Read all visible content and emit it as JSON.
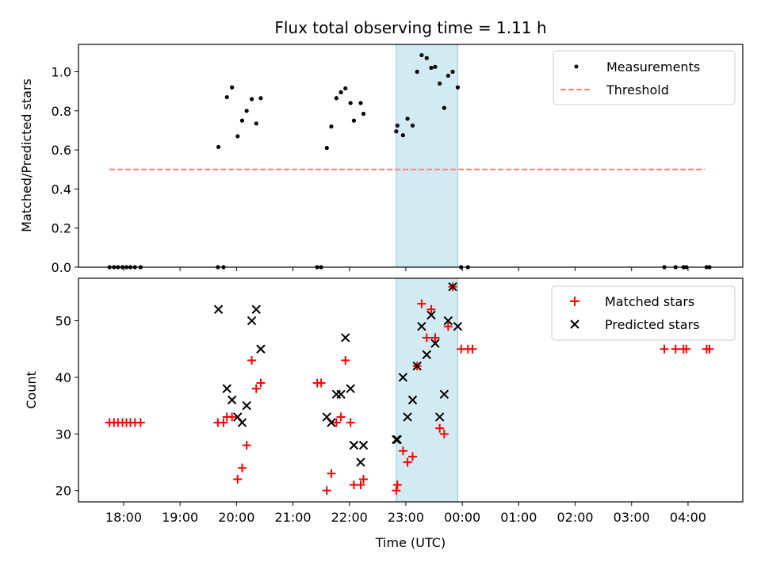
{
  "chart_data": [
    {
      "type": "scatter",
      "title": "Flux total observing time = 1.11 h",
      "ylabel": "Matched/Predicted stars",
      "xlabel": "",
      "xlim": [
        17.2,
        28.97
      ],
      "ylim": [
        0,
        1.14
      ],
      "yticks": [
        0.0,
        0.2,
        0.4,
        0.6,
        0.8,
        1.0
      ],
      "yticklabels": [
        "0.0",
        "0.2",
        "0.4",
        "0.6",
        "0.8",
        "1.0"
      ],
      "highlight_span": [
        22.83,
        23.92
      ],
      "highlight_color": "#add8e6",
      "legend_position": "top-right",
      "series": [
        {
          "name": "Measurements",
          "marker": "dot",
          "color": "#000000",
          "points": [
            [
              17.75,
              0
            ],
            [
              17.83,
              0
            ],
            [
              17.9,
              0
            ],
            [
              17.98,
              0
            ],
            [
              18.05,
              0
            ],
            [
              18.12,
              0
            ],
            [
              18.2,
              0
            ],
            [
              18.3,
              0
            ],
            [
              19.67,
              0
            ],
            [
              19.77,
              0
            ],
            [
              21.43,
              0
            ],
            [
              21.5,
              0
            ],
            [
              23.98,
              0
            ],
            [
              24.1,
              0
            ],
            [
              27.58,
              0
            ],
            [
              27.78,
              0
            ],
            [
              27.92,
              0
            ],
            [
              27.97,
              0
            ],
            [
              28.33,
              0
            ],
            [
              28.38,
              0
            ],
            [
              19.68,
              0.615
            ],
            [
              19.83,
              0.87
            ],
            [
              19.92,
              0.92
            ],
            [
              20.02,
              0.67
            ],
            [
              20.1,
              0.75
            ],
            [
              20.18,
              0.8
            ],
            [
              20.27,
              0.86
            ],
            [
              20.35,
              0.735
            ],
            [
              20.43,
              0.865
            ],
            [
              21.6,
              0.61
            ],
            [
              21.68,
              0.72
            ],
            [
              21.77,
              0.865
            ],
            [
              21.85,
              0.895
            ],
            [
              21.93,
              0.915
            ],
            [
              22.02,
              0.84
            ],
            [
              22.08,
              0.75
            ],
            [
              22.2,
              0.84
            ],
            [
              22.25,
              0.785
            ],
            [
              22.83,
              0.695
            ],
            [
              22.85,
              0.725
            ],
            [
              22.95,
              0.675
            ],
            [
              23.03,
              0.76
            ],
            [
              23.12,
              0.725
            ],
            [
              23.2,
              1.0
            ],
            [
              23.28,
              1.085
            ],
            [
              23.37,
              1.07
            ],
            [
              23.45,
              1.02
            ],
            [
              23.52,
              1.025
            ],
            [
              23.6,
              0.94
            ],
            [
              23.68,
              0.815
            ],
            [
              23.75,
              0.98
            ],
            [
              23.83,
              1.0
            ],
            [
              23.92,
              0.92
            ]
          ]
        },
        {
          "name": "Threshold",
          "marker": "dashed-line",
          "color": "#ff7f7f",
          "points": [
            [
              17.75,
              0.5
            ],
            [
              28.3,
              0.5
            ]
          ]
        }
      ]
    },
    {
      "type": "scatter",
      "title": "",
      "xlabel": "Time (UTC)",
      "ylabel": "Count",
      "xlim": [
        17.2,
        28.97
      ],
      "ylim": [
        18,
        57.5
      ],
      "yticks": [
        20,
        30,
        40,
        50
      ],
      "yticklabels": [
        "20",
        "30",
        "40",
        "50"
      ],
      "xticks": [
        18,
        19,
        20,
        21,
        22,
        23,
        24,
        25,
        26,
        27,
        28
      ],
      "xticklabels": [
        "18:00",
        "19:00",
        "20:00",
        "21:00",
        "22:00",
        "23:00",
        "00:00",
        "01:00",
        "02:00",
        "03:00",
        "04:00"
      ],
      "highlight_span": [
        22.83,
        23.92
      ],
      "highlight_color": "#add8e6",
      "legend_position": "top-right",
      "series": [
        {
          "name": "Matched stars",
          "marker": "plus",
          "color": "#ff0000",
          "points": [
            [
              17.75,
              32
            ],
            [
              17.83,
              32
            ],
            [
              17.9,
              32
            ],
            [
              17.98,
              32
            ],
            [
              18.05,
              32
            ],
            [
              18.12,
              32
            ],
            [
              18.2,
              32
            ],
            [
              18.3,
              32
            ],
            [
              19.67,
              32
            ],
            [
              19.77,
              32
            ],
            [
              19.83,
              33
            ],
            [
              19.92,
              33
            ],
            [
              20.02,
              22
            ],
            [
              20.1,
              24
            ],
            [
              20.18,
              28
            ],
            [
              20.27,
              43
            ],
            [
              20.35,
              38
            ],
            [
              20.43,
              39
            ],
            [
              21.43,
              39
            ],
            [
              21.5,
              39
            ],
            [
              21.6,
              20
            ],
            [
              21.68,
              23
            ],
            [
              21.77,
              32
            ],
            [
              21.85,
              33
            ],
            [
              21.93,
              43
            ],
            [
              22.02,
              32
            ],
            [
              22.08,
              21
            ],
            [
              22.2,
              21
            ],
            [
              22.25,
              22
            ],
            [
              22.83,
              20
            ],
            [
              22.85,
              21
            ],
            [
              22.95,
              27
            ],
            [
              23.03,
              25
            ],
            [
              23.12,
              26
            ],
            [
              23.2,
              42
            ],
            [
              23.28,
              53
            ],
            [
              23.37,
              47
            ],
            [
              23.45,
              52
            ],
            [
              23.52,
              47
            ],
            [
              23.6,
              31
            ],
            [
              23.68,
              30
            ],
            [
              23.75,
              49
            ],
            [
              23.83,
              56
            ],
            [
              23.98,
              45
            ],
            [
              24.1,
              45
            ],
            [
              24.18,
              45
            ],
            [
              27.58,
              45
            ],
            [
              27.78,
              45
            ],
            [
              27.92,
              45
            ],
            [
              27.97,
              45
            ],
            [
              28.33,
              45
            ],
            [
              28.38,
              45
            ]
          ]
        },
        {
          "name": "Predicted stars",
          "marker": "x",
          "color": "#000000",
          "points": [
            [
              19.68,
              52
            ],
            [
              19.83,
              38
            ],
            [
              19.92,
              36
            ],
            [
              20.02,
              33
            ],
            [
              20.1,
              32
            ],
            [
              20.18,
              35
            ],
            [
              20.27,
              50
            ],
            [
              20.35,
              52
            ],
            [
              20.43,
              45
            ],
            [
              21.6,
              33
            ],
            [
              21.68,
              32
            ],
            [
              21.77,
              37
            ],
            [
              21.85,
              37
            ],
            [
              21.93,
              47
            ],
            [
              22.02,
              38
            ],
            [
              22.08,
              28
            ],
            [
              22.2,
              25
            ],
            [
              22.25,
              28
            ],
            [
              22.83,
              29
            ],
            [
              22.85,
              29
            ],
            [
              22.95,
              40
            ],
            [
              23.03,
              33
            ],
            [
              23.12,
              36
            ],
            [
              23.2,
              42
            ],
            [
              23.28,
              49
            ],
            [
              23.37,
              44
            ],
            [
              23.45,
              51
            ],
            [
              23.52,
              46
            ],
            [
              23.6,
              33
            ],
            [
              23.68,
              37
            ],
            [
              23.75,
              50
            ],
            [
              23.83,
              56
            ],
            [
              23.92,
              49
            ]
          ]
        }
      ]
    }
  ]
}
